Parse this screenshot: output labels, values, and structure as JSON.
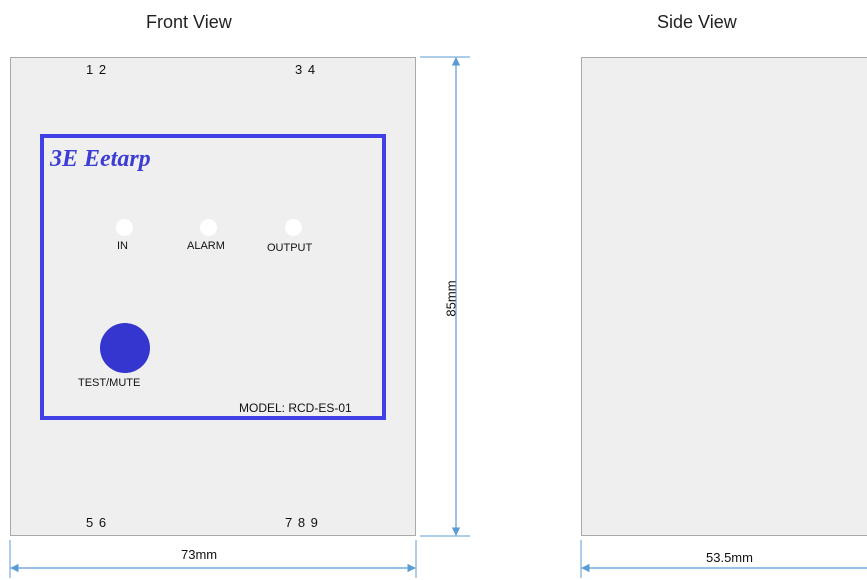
{
  "front_view": {
    "title": "Front View",
    "terminals_top_left": "1 2",
    "terminals_top_right": "3 4",
    "terminals_bottom_left": "5 6",
    "terminals_bottom_right": "7 8 9",
    "logo": "3E Eetarp",
    "indicators": [
      {
        "label": "IN"
      },
      {
        "label": "ALARM"
      },
      {
        "label": "OUTPUT"
      }
    ],
    "button_label": "TEST/MUTE",
    "model": "MODEL: RCD-ES-01",
    "width_dim": "73mm",
    "height_dim": "85mm"
  },
  "side_view": {
    "title": "Side View",
    "width_dim": "53.5mm"
  },
  "colors": {
    "module_border": "#4040e6",
    "button": "#3535d0",
    "dimension_line": "#5b9bd5",
    "panel_bg": "#efefef"
  }
}
